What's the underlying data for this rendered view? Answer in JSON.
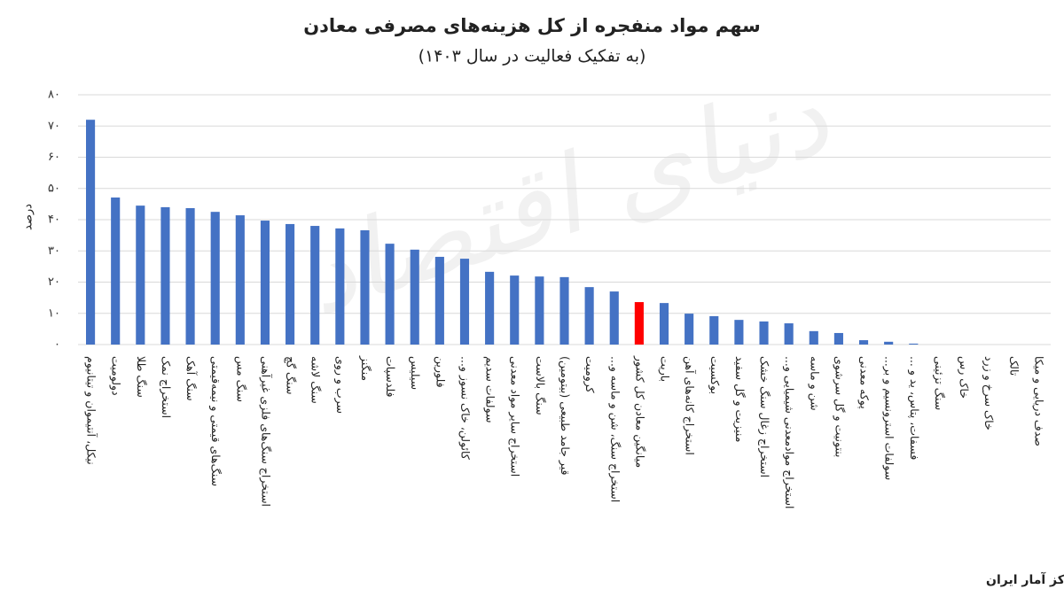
{
  "chart_data": {
    "type": "bar",
    "title": "سهم مواد منفجره از  کل هزینه‌های مصرفی معادن",
    "subtitle": "(به تفکیک فعالیت در سال ۱۴۰۳)",
    "y_label": "درصد",
    "source": "منبع: مرکز آمار ایران",
    "watermark": "دنیای اقتصاد",
    "categories": [
      "نیکل، آنتیموان و تیتانیوم",
      "دولومیت",
      "سنگ طلا",
      "استخراج نمک",
      "سنگ آهک",
      "سنگ‌های قیمتی و نیمه‌قیمتی",
      "سنگ مس",
      "استخراج سنگ‌های فلزی غیرآهنی",
      "سنگ گچ",
      "سنگ لاشه",
      "سرب و روی",
      "منگنز",
      "فلدسپات",
      "سیلیس",
      "فلورین",
      "کائولن، خاک نسوز و...",
      "سولفات سدیم",
      "استخراج سایر مواد معدنی",
      "سنگ بالاست",
      "قیر جامد طبیعی (بیتومین)",
      "کرومیت",
      "استخراج سنگ، شن و ماسه و...",
      "میانگین معادن کل کشور",
      "باریت",
      "استخراج کانه‌های آهن",
      "بوکسیت",
      "منیزیت و گل سفید",
      "استخراج زغال سنگ خشک",
      "استخراج موادمعدنی شیمیایی و...",
      "شن و ماسه",
      "بنتونیت و گل سرشوی",
      "پوکه معدنی",
      "سولفات استرونسیم و بر...",
      "فسفات، پتاس، ید و ...",
      "سنگ تزئینی",
      "خاک رس",
      "خاک سرخ و زرد",
      "تالک",
      "صدف دریایی و میکا"
    ],
    "values": [
      72,
      47.1,
      44.5,
      44,
      43.7,
      42.5,
      41.4,
      39.7,
      38.6,
      38,
      37.2,
      36.6,
      32.3,
      30.4,
      28.1,
      27.5,
      23.3,
      22.1,
      21.8,
      21.6,
      18.4,
      17,
      13.6,
      13.3,
      9.9,
      9.1,
      7.9,
      7.4,
      6.8,
      4.3,
      3.7,
      1.4,
      0.9,
      0.3,
      0,
      0,
      0,
      0,
      0
    ],
    "color": "#4472c4",
    "highlight_index": 22,
    "highlight_color": "#ff0000",
    "ylim": [
      0,
      80
    ],
    "yticks": [
      {
        "value": 0,
        "label": "۰"
      },
      {
        "value": 10,
        "label": "۱۰"
      },
      {
        "value": 20,
        "label": "۲۰"
      },
      {
        "value": 30,
        "label": "۳۰"
      },
      {
        "value": 40,
        "label": "۴۰"
      },
      {
        "value": 50,
        "label": "۵۰"
      },
      {
        "value": 60,
        "label": "۶۰"
      },
      {
        "value": 70,
        "label": "۷۰"
      },
      {
        "value": 80,
        "label": "۸۰"
      }
    ],
    "grid": true
  }
}
